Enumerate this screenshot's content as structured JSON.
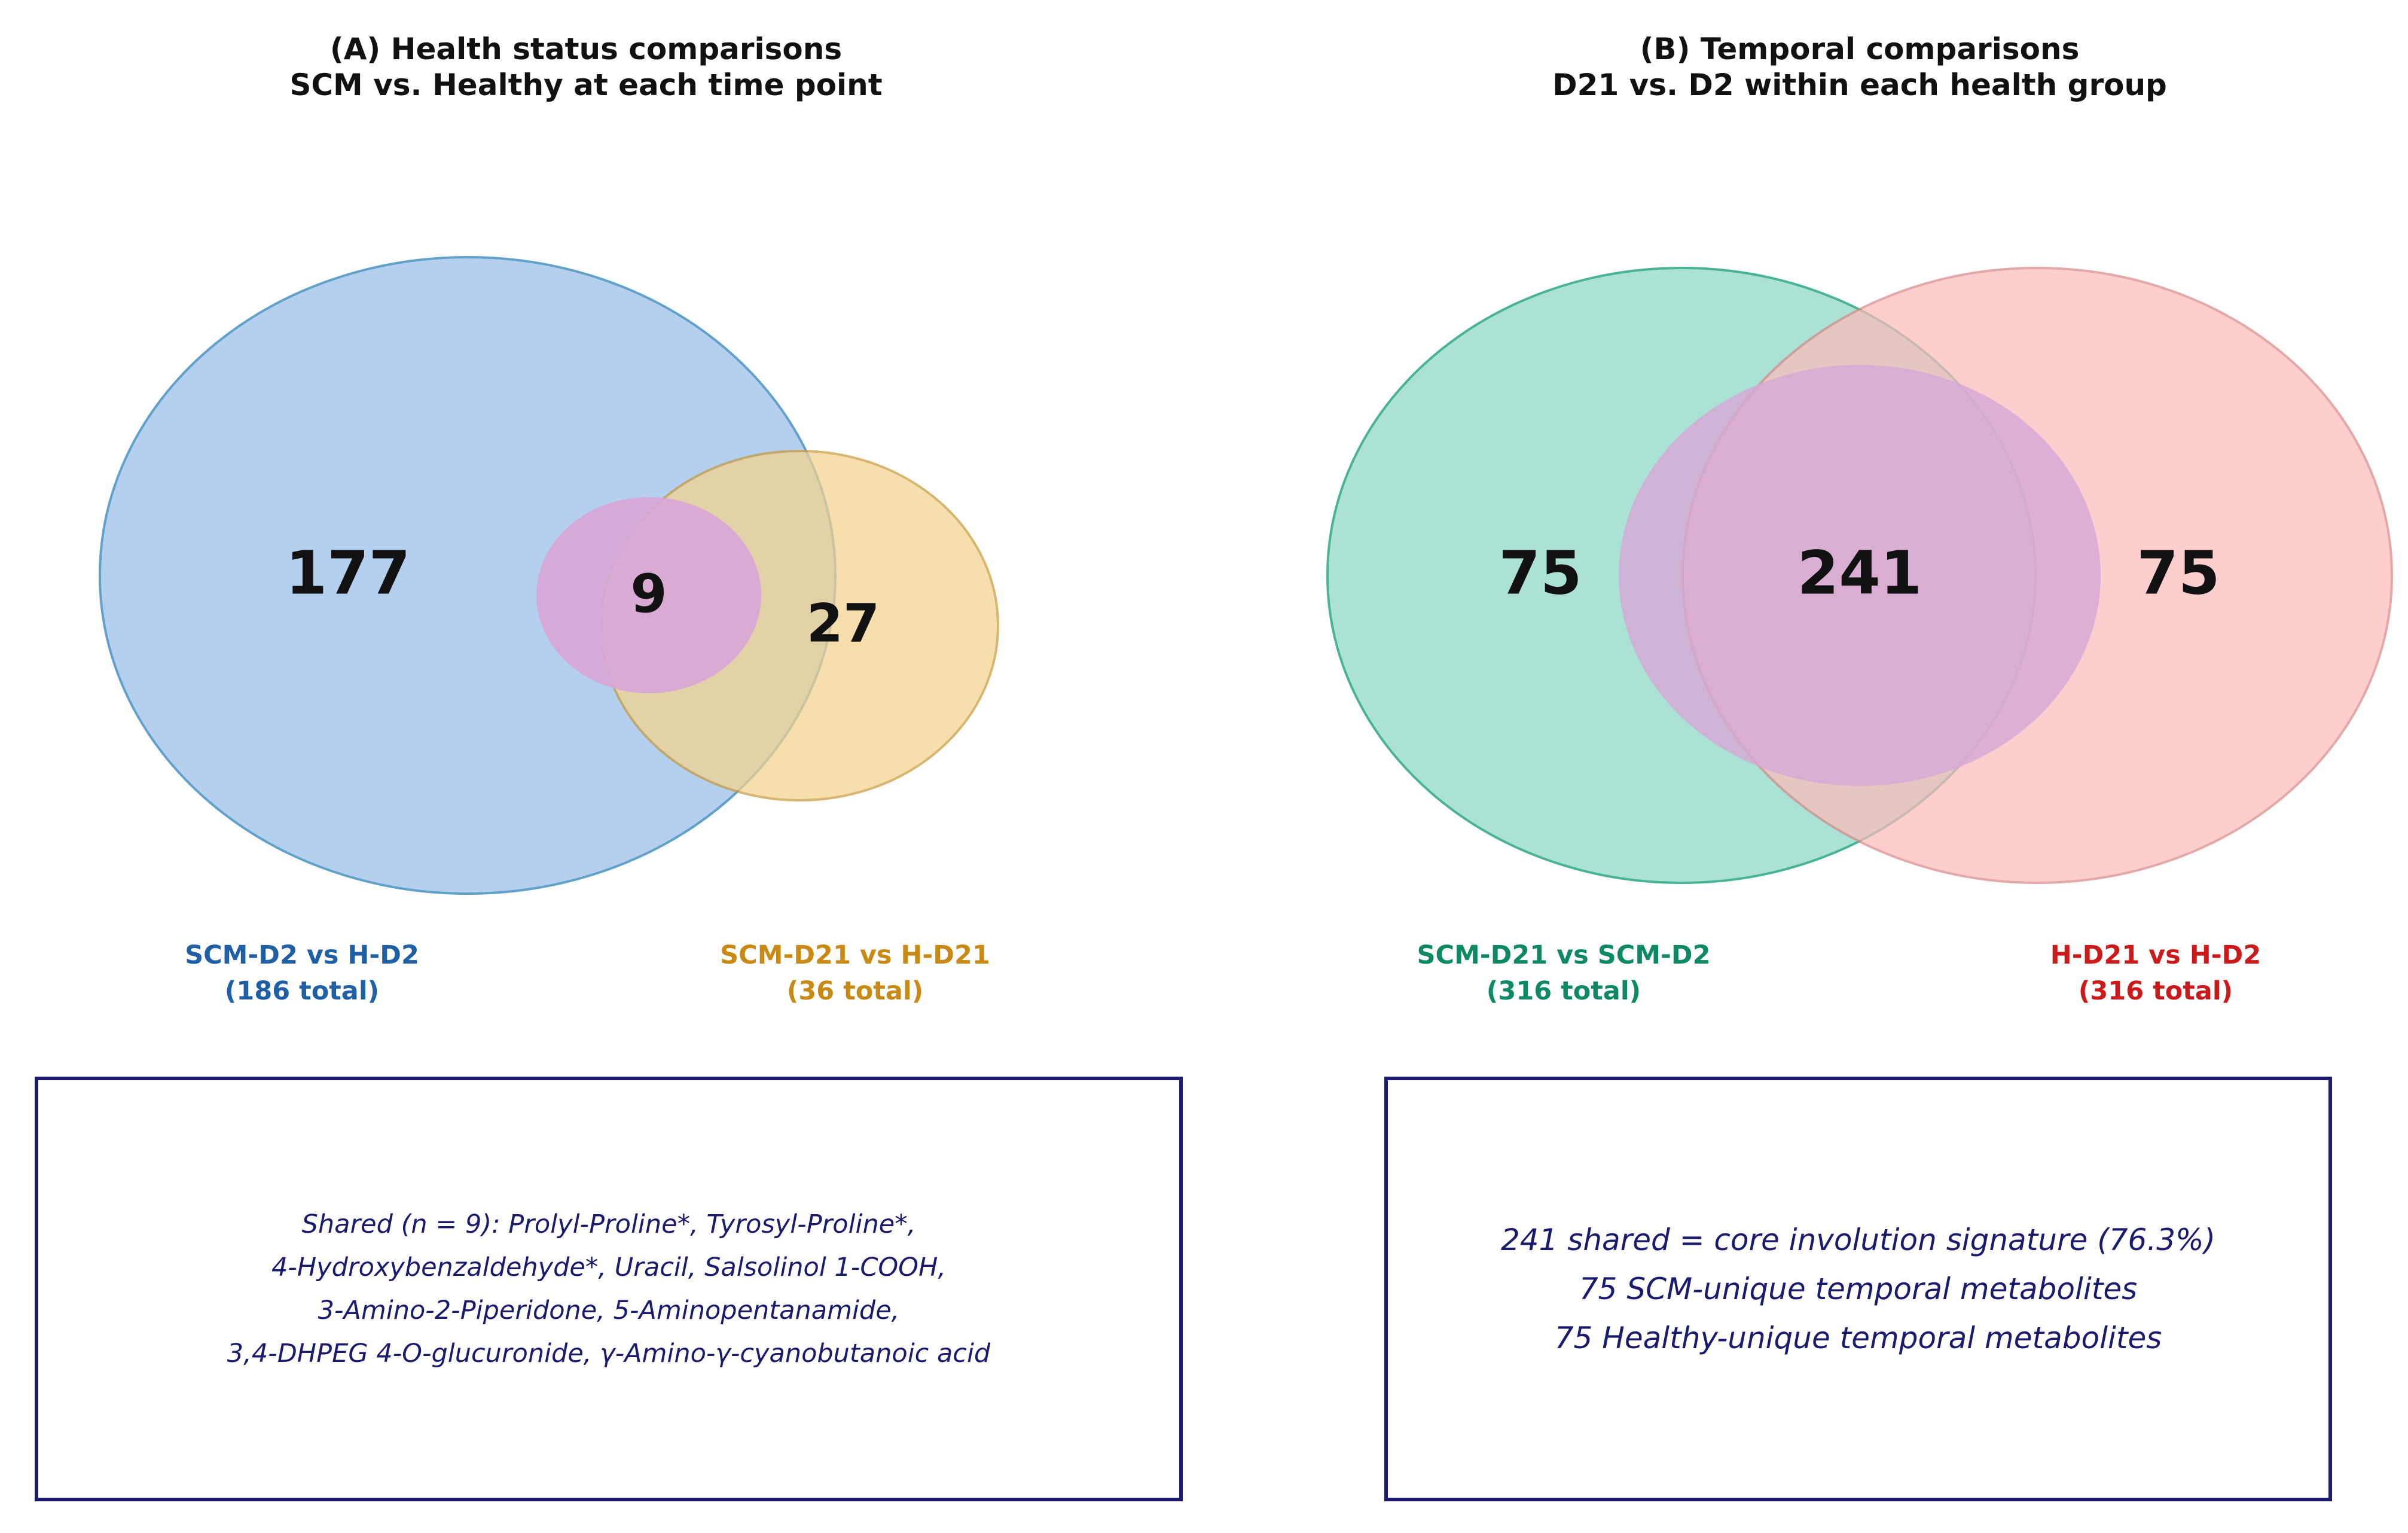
{
  "panel_a": {
    "title_line1": "(A) Health status comparisons",
    "title_line2": "SCM vs. Healthy at each time point",
    "sets": [
      {
        "line1": "SCM-D2 vs H-D2",
        "line2": "(186 total)",
        "color": "#1f5fa6",
        "fill": "#b3cfee",
        "stroke": "#5d9ec9"
      },
      {
        "line1": "SCM-D21 vs H-D21",
        "line2": "(36 total)",
        "color": "#c98a14",
        "fill": "#f5d28e",
        "stroke": "#c99a3c"
      }
    ],
    "regions": {
      "only_first": "177",
      "shared": "9",
      "only_second": "27"
    },
    "note_lines": [
      "Shared (n = 9): Prolyl-Proline*, Tyrosyl-Proline*,",
      "4-Hydroxybenzaldehyde*, Uracil, Salsolinol 1-COOH,",
      "3-Amino-2-Piperidone, 5-Aminopentanamide,",
      "3,4-DHPEG 4-O-glucuronide, γ-Amino-γ-cyanobutanoic acid"
    ]
  },
  "panel_b": {
    "title_line1": "(B) Temporal comparisons",
    "title_line2": "D21 vs. D2 within each health group",
    "sets": [
      {
        "line1": "SCM-D21 vs SCM-D2",
        "line2": "(316 total)",
        "color": "#0d8a64",
        "fill": "#a6e0d2",
        "stroke": "#3aae8c"
      },
      {
        "line1": "H-D21 vs H-D2",
        "line2": "(316 total)",
        "color": "#cc1a1a",
        "fill": "#fbbcbc",
        "stroke": "#d98888"
      }
    ],
    "regions": {
      "only_first": "75",
      "shared": "241",
      "only_second": "75"
    },
    "note_lines": [
      "241 shared = core involution signature (76.3%)",
      "75 SCM-unique temporal metabolites",
      "75 Healthy-unique temporal metabolites"
    ]
  },
  "intersection_color": "#d7a8d6",
  "note_text_color": "#1a1a6e"
}
